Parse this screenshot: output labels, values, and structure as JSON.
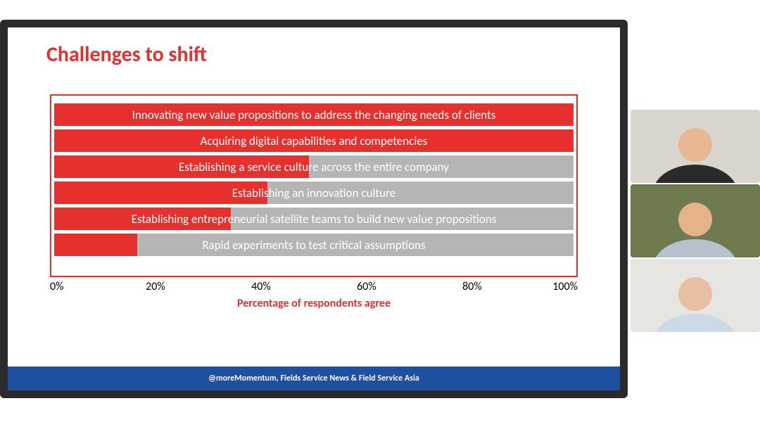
{
  "slide": {
    "title": "Challenges to shift",
    "title_color": "#e5302d",
    "footer_text": "@moreMomentum, Fields Service News & Field Service Asia",
    "footer_bg": "#1e4fa0",
    "footer_text_color": "#ffffff"
  },
  "chart": {
    "type": "bar-horizontal",
    "border_color": "#e5302d",
    "bar_track_color": "#b5b5b5",
    "bar_fill_color": "#e5302d",
    "label_color": "#ffffff",
    "label_fontsize": 17,
    "xlim": [
      0,
      100
    ],
    "x_ticks": [
      0,
      20,
      40,
      60,
      80,
      100
    ],
    "x_tick_labels": [
      "0%",
      "20%",
      "40%",
      "60%",
      "80%",
      "100%"
    ],
    "x_axis_title": "Percentage of respondents agree",
    "x_axis_title_color": "#e5302d",
    "bars": [
      {
        "label": "Innovating new value propositions to address the changing needs of clients",
        "value": 100
      },
      {
        "label": "Acquiring digital capabilities and competencies",
        "value": 100
      },
      {
        "label": "Establishing a service culture across the entire company",
        "value": 49
      },
      {
        "label": "Establishing an innovation culture",
        "value": 41
      },
      {
        "label": "Establishing entrepreneurial satellite teams to build new value propositions",
        "value": 34
      },
      {
        "label": "Rapid experiments to test critical assumptions",
        "value": 16
      }
    ]
  },
  "webcams": {
    "tiles": [
      {
        "bg": "#d9d5cf",
        "shirt": "#2a2a2a",
        "skin": "#e7b891"
      },
      {
        "bg": "#6f7a4f",
        "shirt": "#b7c3cc",
        "skin": "#e6b28a"
      },
      {
        "bg": "#e7e5e1",
        "shirt": "#cdd9e6",
        "skin": "#e8bfa0"
      }
    ]
  }
}
